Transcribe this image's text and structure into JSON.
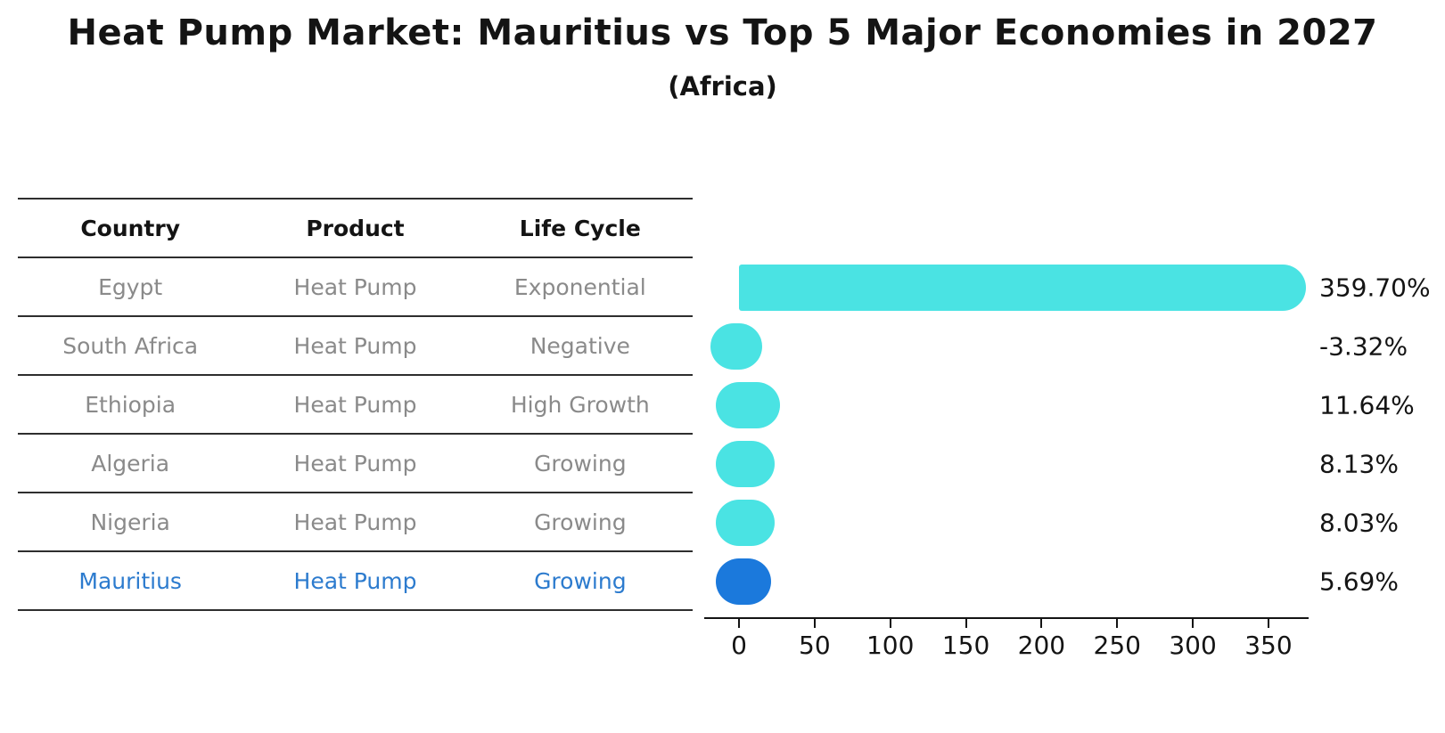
{
  "title": "Heat Pump Market: Mauritius vs Top 5 Major Economies in 2027",
  "subtitle": "(Africa)",
  "table": {
    "headers": [
      "Country",
      "Product",
      "Life Cycle"
    ],
    "rows": [
      {
        "country": "Egypt",
        "product": "Heat Pump",
        "life_cycle": "Exponential",
        "highlight": false
      },
      {
        "country": "South Africa",
        "product": "Heat Pump",
        "life_cycle": "Negative",
        "highlight": false
      },
      {
        "country": "Ethiopia",
        "product": "Heat Pump",
        "life_cycle": "High Growth",
        "highlight": false
      },
      {
        "country": "Algeria",
        "product": "Heat Pump",
        "life_cycle": "Growing",
        "highlight": false
      },
      {
        "country": "Nigeria",
        "product": "Heat Pump",
        "life_cycle": "Growing",
        "highlight": false
      },
      {
        "country": "Mauritius",
        "product": "Heat Pump",
        "life_cycle": "Growing",
        "highlight": true
      }
    ]
  },
  "chart_data": {
    "type": "bar",
    "orientation": "horizontal",
    "title": "Heat Pump Market: Mauritius vs Top 5 Major Economies in 2027 (Africa)",
    "categories": [
      "Egypt",
      "South Africa",
      "Ethiopia",
      "Algeria",
      "Nigeria",
      "Mauritius"
    ],
    "values": [
      359.7,
      -3.32,
      11.64,
      8.13,
      8.03,
      5.69
    ],
    "value_labels": [
      "359.70%",
      "-3.32%",
      "11.64%",
      "8.13%",
      "8.03%",
      "5.69%"
    ],
    "highlight_index": 5,
    "x_ticks": [
      0,
      50,
      100,
      150,
      200,
      250,
      300,
      350
    ],
    "xlim": [
      -23,
      376
    ],
    "xlabel": "",
    "ylabel": "",
    "grid": false,
    "legend": "none",
    "colors": {
      "bar": "#4AE3E3",
      "highlight_bar": "#1B79DC",
      "highlight_text": "#2C7BCE",
      "text": "#141414",
      "muted_text": "#8A8A8A",
      "line": "#2E2E2E"
    }
  }
}
